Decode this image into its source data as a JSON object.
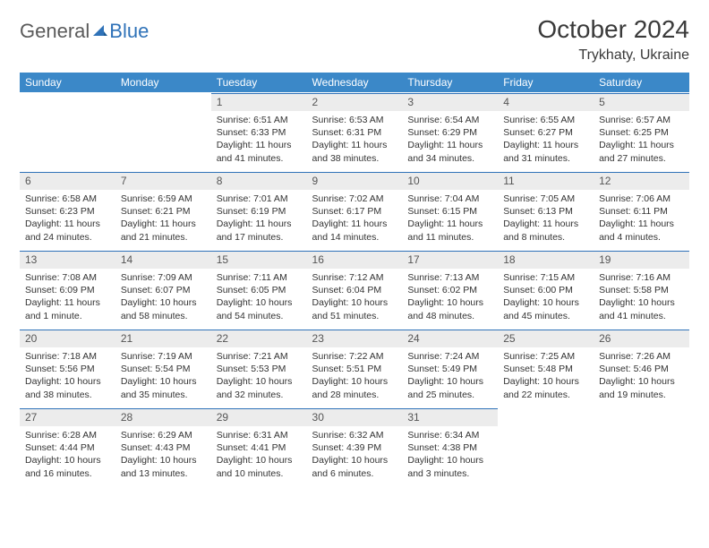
{
  "brand": {
    "part1": "General",
    "part2": "Blue"
  },
  "title": "October 2024",
  "location": "Trykhaty, Ukraine",
  "colors": {
    "header_bg": "#3b88c8",
    "header_text": "#ffffff",
    "daynum_bg": "#ececec",
    "border_accent": "#2f72b8",
    "body_text": "#333333",
    "brand_gray": "#5a5a5a",
    "brand_blue": "#2f72b8"
  },
  "day_names": [
    "Sunday",
    "Monday",
    "Tuesday",
    "Wednesday",
    "Thursday",
    "Friday",
    "Saturday"
  ],
  "weeks": [
    [
      null,
      null,
      {
        "n": "1",
        "sr": "Sunrise: 6:51 AM",
        "ss": "Sunset: 6:33 PM",
        "dl": "Daylight: 11 hours and 41 minutes."
      },
      {
        "n": "2",
        "sr": "Sunrise: 6:53 AM",
        "ss": "Sunset: 6:31 PM",
        "dl": "Daylight: 11 hours and 38 minutes."
      },
      {
        "n": "3",
        "sr": "Sunrise: 6:54 AM",
        "ss": "Sunset: 6:29 PM",
        "dl": "Daylight: 11 hours and 34 minutes."
      },
      {
        "n": "4",
        "sr": "Sunrise: 6:55 AM",
        "ss": "Sunset: 6:27 PM",
        "dl": "Daylight: 11 hours and 31 minutes."
      },
      {
        "n": "5",
        "sr": "Sunrise: 6:57 AM",
        "ss": "Sunset: 6:25 PM",
        "dl": "Daylight: 11 hours and 27 minutes."
      }
    ],
    [
      {
        "n": "6",
        "sr": "Sunrise: 6:58 AM",
        "ss": "Sunset: 6:23 PM",
        "dl": "Daylight: 11 hours and 24 minutes."
      },
      {
        "n": "7",
        "sr": "Sunrise: 6:59 AM",
        "ss": "Sunset: 6:21 PM",
        "dl": "Daylight: 11 hours and 21 minutes."
      },
      {
        "n": "8",
        "sr": "Sunrise: 7:01 AM",
        "ss": "Sunset: 6:19 PM",
        "dl": "Daylight: 11 hours and 17 minutes."
      },
      {
        "n": "9",
        "sr": "Sunrise: 7:02 AM",
        "ss": "Sunset: 6:17 PM",
        "dl": "Daylight: 11 hours and 14 minutes."
      },
      {
        "n": "10",
        "sr": "Sunrise: 7:04 AM",
        "ss": "Sunset: 6:15 PM",
        "dl": "Daylight: 11 hours and 11 minutes."
      },
      {
        "n": "11",
        "sr": "Sunrise: 7:05 AM",
        "ss": "Sunset: 6:13 PM",
        "dl": "Daylight: 11 hours and 8 minutes."
      },
      {
        "n": "12",
        "sr": "Sunrise: 7:06 AM",
        "ss": "Sunset: 6:11 PM",
        "dl": "Daylight: 11 hours and 4 minutes."
      }
    ],
    [
      {
        "n": "13",
        "sr": "Sunrise: 7:08 AM",
        "ss": "Sunset: 6:09 PM",
        "dl": "Daylight: 11 hours and 1 minute."
      },
      {
        "n": "14",
        "sr": "Sunrise: 7:09 AM",
        "ss": "Sunset: 6:07 PM",
        "dl": "Daylight: 10 hours and 58 minutes."
      },
      {
        "n": "15",
        "sr": "Sunrise: 7:11 AM",
        "ss": "Sunset: 6:05 PM",
        "dl": "Daylight: 10 hours and 54 minutes."
      },
      {
        "n": "16",
        "sr": "Sunrise: 7:12 AM",
        "ss": "Sunset: 6:04 PM",
        "dl": "Daylight: 10 hours and 51 minutes."
      },
      {
        "n": "17",
        "sr": "Sunrise: 7:13 AM",
        "ss": "Sunset: 6:02 PM",
        "dl": "Daylight: 10 hours and 48 minutes."
      },
      {
        "n": "18",
        "sr": "Sunrise: 7:15 AM",
        "ss": "Sunset: 6:00 PM",
        "dl": "Daylight: 10 hours and 45 minutes."
      },
      {
        "n": "19",
        "sr": "Sunrise: 7:16 AM",
        "ss": "Sunset: 5:58 PM",
        "dl": "Daylight: 10 hours and 41 minutes."
      }
    ],
    [
      {
        "n": "20",
        "sr": "Sunrise: 7:18 AM",
        "ss": "Sunset: 5:56 PM",
        "dl": "Daylight: 10 hours and 38 minutes."
      },
      {
        "n": "21",
        "sr": "Sunrise: 7:19 AM",
        "ss": "Sunset: 5:54 PM",
        "dl": "Daylight: 10 hours and 35 minutes."
      },
      {
        "n": "22",
        "sr": "Sunrise: 7:21 AM",
        "ss": "Sunset: 5:53 PM",
        "dl": "Daylight: 10 hours and 32 minutes."
      },
      {
        "n": "23",
        "sr": "Sunrise: 7:22 AM",
        "ss": "Sunset: 5:51 PM",
        "dl": "Daylight: 10 hours and 28 minutes."
      },
      {
        "n": "24",
        "sr": "Sunrise: 7:24 AM",
        "ss": "Sunset: 5:49 PM",
        "dl": "Daylight: 10 hours and 25 minutes."
      },
      {
        "n": "25",
        "sr": "Sunrise: 7:25 AM",
        "ss": "Sunset: 5:48 PM",
        "dl": "Daylight: 10 hours and 22 minutes."
      },
      {
        "n": "26",
        "sr": "Sunrise: 7:26 AM",
        "ss": "Sunset: 5:46 PM",
        "dl": "Daylight: 10 hours and 19 minutes."
      }
    ],
    [
      {
        "n": "27",
        "sr": "Sunrise: 6:28 AM",
        "ss": "Sunset: 4:44 PM",
        "dl": "Daylight: 10 hours and 16 minutes."
      },
      {
        "n": "28",
        "sr": "Sunrise: 6:29 AM",
        "ss": "Sunset: 4:43 PM",
        "dl": "Daylight: 10 hours and 13 minutes."
      },
      {
        "n": "29",
        "sr": "Sunrise: 6:31 AM",
        "ss": "Sunset: 4:41 PM",
        "dl": "Daylight: 10 hours and 10 minutes."
      },
      {
        "n": "30",
        "sr": "Sunrise: 6:32 AM",
        "ss": "Sunset: 4:39 PM",
        "dl": "Daylight: 10 hours and 6 minutes."
      },
      {
        "n": "31",
        "sr": "Sunrise: 6:34 AM",
        "ss": "Sunset: 4:38 PM",
        "dl": "Daylight: 10 hours and 3 minutes."
      },
      null,
      null
    ]
  ]
}
